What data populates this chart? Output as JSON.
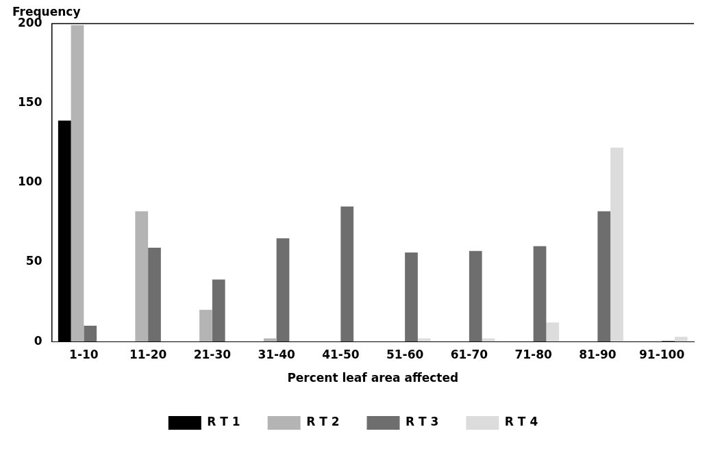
{
  "chart_data": {
    "type": "bar",
    "ylabel": "Frequency",
    "xlabel": "Percent leaf area affected",
    "categories": [
      "1-10",
      "11-20",
      "21-30",
      "31-40",
      "41-50",
      "51-60",
      "61-70",
      "71-80",
      "81-90",
      "91-100"
    ],
    "series": [
      {
        "name": "R T 1",
        "color": "#000000",
        "values": [
          139,
          0,
          0,
          0,
          0,
          0,
          0,
          0,
          0,
          0
        ]
      },
      {
        "name": "R T 2",
        "color": "#b4b4b4",
        "values": [
          199,
          82,
          20,
          2,
          0,
          0,
          0,
          0,
          0,
          0
        ]
      },
      {
        "name": "R T 3",
        "color": "#6e6e6e",
        "values": [
          10,
          59,
          39,
          65,
          85,
          56,
          57,
          60,
          82,
          0.5
        ]
      },
      {
        "name": "R T 4",
        "color": "#dcdcdc",
        "values": [
          0,
          0,
          0,
          0,
          0,
          2,
          2,
          12,
          122,
          3
        ]
      }
    ],
    "ylim": [
      0,
      200
    ],
    "yticks": [
      0,
      50,
      100,
      150,
      200
    ],
    "grid": false,
    "legend": "bottom"
  }
}
